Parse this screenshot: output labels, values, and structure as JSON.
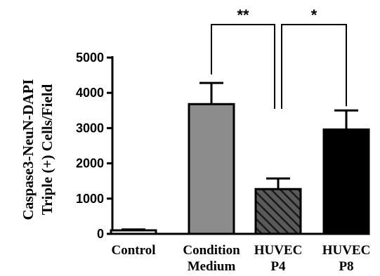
{
  "chart_data": {
    "type": "bar",
    "categories": [
      [
        "Control"
      ],
      [
        "Condition",
        "Medium"
      ],
      [
        "HUVEC",
        "P4"
      ],
      [
        "HUVEC",
        "P8"
      ]
    ],
    "values": [
      100,
      3680,
      1270,
      2960
    ],
    "errors": [
      25,
      600,
      300,
      540
    ],
    "bar_colors": [
      "#ffffff",
      "#8c8c8c",
      "#4a4a4a",
      "#000000"
    ],
    "bar_patterns": [
      "solid",
      "solid",
      "hatched",
      "solid"
    ],
    "ylabel_lines": [
      "Caspase3-NeuN-DAPI",
      "Triple (+) Cells/Field"
    ],
    "ylim": [
      0,
      5000
    ],
    "yticks": [
      0,
      1000,
      2000,
      3000,
      4000,
      5000
    ],
    "grid": false,
    "significance": [
      {
        "from": 1,
        "to": 2,
        "label": "**"
      },
      {
        "from": 2,
        "to": 3,
        "label": "*"
      }
    ]
  }
}
